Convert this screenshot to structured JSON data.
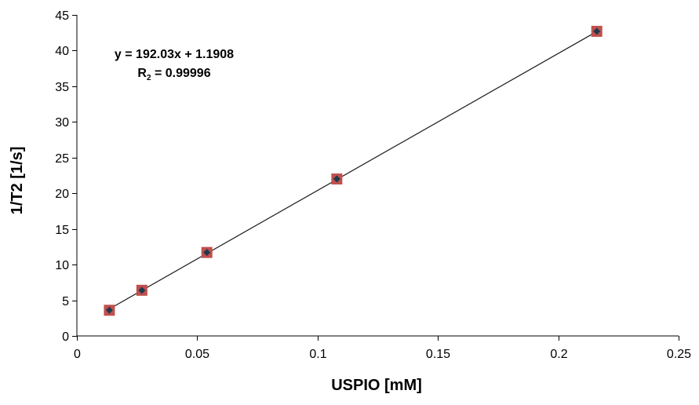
{
  "chart_data": {
    "type": "scatter",
    "xlabel": "USPIO [mM]",
    "ylabel": "1/T2 [1/s]",
    "xlim": [
      0,
      0.25
    ],
    "ylim": [
      0,
      45
    ],
    "x_ticks": [
      0,
      0.05,
      0.1,
      0.15,
      0.2,
      0.25
    ],
    "x_tick_labels": [
      "0",
      "0.05",
      "0.1",
      "0.15",
      "0.2",
      "0.25"
    ],
    "y_ticks": [
      0,
      5,
      10,
      15,
      20,
      25,
      30,
      35,
      40,
      45
    ],
    "y_tick_labels": [
      "0",
      "5",
      "10",
      "15",
      "20",
      "25",
      "30",
      "35",
      "40",
      "45"
    ],
    "grid": false,
    "legend": "none",
    "series": [
      {
        "marker": "diamond",
        "marker_color": "#1f3a4d",
        "marker_background": "#c0504d",
        "x": [
          0.0135,
          0.027,
          0.054,
          0.108,
          0.216
        ],
        "y": [
          3.6,
          6.4,
          11.7,
          22.0,
          42.7
        ]
      }
    ],
    "trendline": {
      "type": "linear",
      "slope": 192.03,
      "intercept": 1.1908,
      "x_range": [
        0.0135,
        0.216
      ],
      "color": "#1a1a1a"
    },
    "annotation": {
      "equation": "y = 192.03x + 1.1908",
      "r2_prefix": "R",
      "r2_sub": "2",
      "r2_suffix": " = 0.99996"
    }
  }
}
